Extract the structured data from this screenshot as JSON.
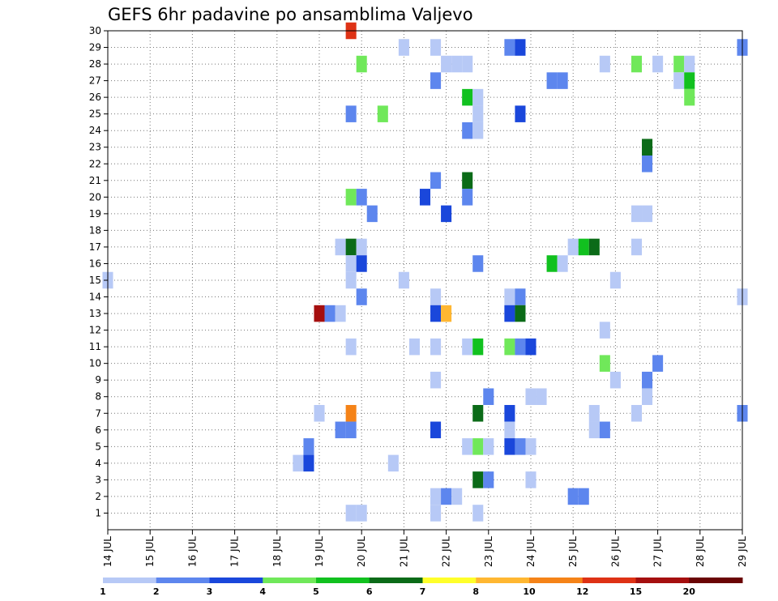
{
  "chart_data": {
    "type": "heatmap",
    "title": "GEFS 6hr padavine po ansamblima Valjevo",
    "x_axis": {
      "unit": "day of July",
      "range": [
        14,
        29
      ],
      "tick_labels": [
        "14 JUL",
        "15 JUL",
        "16 JUL",
        "17 JUL",
        "18 JUL",
        "19 JUL",
        "20 JUL",
        "21 JUL",
        "22 JUL",
        "23 JUL",
        "24 JUL",
        "25 JUL",
        "26 JUL",
        "27 JUL",
        "28 JUL",
        "29 JUL"
      ],
      "grid": true
    },
    "y_axis": {
      "unit": "ensemble member",
      "range": [
        0,
        30
      ],
      "tick_labels": [
        "1",
        "2",
        "3",
        "4",
        "5",
        "6",
        "7",
        "8",
        "9",
        "10",
        "11",
        "12",
        "13",
        "14",
        "15",
        "16",
        "17",
        "18",
        "19",
        "20",
        "21",
        "22",
        "23",
        "24",
        "25",
        "26",
        "27",
        "28",
        "29",
        "30"
      ],
      "grid": true
    },
    "colorbar": {
      "placement": "bottom",
      "labels": [
        "1",
        "2",
        "3",
        "4",
        "5",
        "6",
        "7",
        "8",
        "10",
        "12",
        "15",
        "20"
      ],
      "colors": [
        "#b7c9f6",
        "#5d86ee",
        "#1a47db",
        "#70e85a",
        "#11c11f",
        "#0b6b18",
        "#ffff2a",
        "#ffb732",
        "#f58318",
        "#de3215",
        "#a50f0f",
        "#6a0404"
      ]
    },
    "cells": [
      {
        "day": 19.75,
        "member": 30,
        "color": "#de3215"
      },
      {
        "day": 21.0,
        "member": 29,
        "color": "#b7c9f6"
      },
      {
        "day": 21.75,
        "member": 29,
        "color": "#b7c9f6"
      },
      {
        "day": 23.5,
        "member": 29,
        "color": "#5d86ee"
      },
      {
        "day": 23.75,
        "member": 29,
        "color": "#1a47db"
      },
      {
        "day": 29.0,
        "member": 29,
        "color": "#5d86ee"
      },
      {
        "day": 20.0,
        "member": 28,
        "color": "#70e85a"
      },
      {
        "day": 22.0,
        "member": 28,
        "color": "#b7c9f6"
      },
      {
        "day": 22.25,
        "member": 28,
        "color": "#b7c9f6"
      },
      {
        "day": 22.5,
        "member": 28,
        "color": "#b7c9f6"
      },
      {
        "day": 25.75,
        "member": 28,
        "color": "#b7c9f6"
      },
      {
        "day": 26.5,
        "member": 28,
        "color": "#70e85a"
      },
      {
        "day": 27.0,
        "member": 28,
        "color": "#b7c9f6"
      },
      {
        "day": 27.5,
        "member": 28,
        "color": "#70e85a"
      },
      {
        "day": 27.75,
        "member": 28,
        "color": "#b7c9f6"
      },
      {
        "day": 21.75,
        "member": 27,
        "color": "#5d86ee"
      },
      {
        "day": 24.5,
        "member": 27,
        "color": "#5d86ee"
      },
      {
        "day": 24.75,
        "member": 27,
        "color": "#5d86ee"
      },
      {
        "day": 27.5,
        "member": 27,
        "color": "#b7c9f6"
      },
      {
        "day": 27.75,
        "member": 27,
        "color": "#11c11f"
      },
      {
        "day": 22.5,
        "member": 26,
        "color": "#11c11f"
      },
      {
        "day": 22.75,
        "member": 26,
        "color": "#b7c9f6"
      },
      {
        "day": 27.75,
        "member": 26,
        "color": "#70e85a"
      },
      {
        "day": 19.75,
        "member": 25,
        "color": "#5d86ee"
      },
      {
        "day": 20.5,
        "member": 25,
        "color": "#70e85a"
      },
      {
        "day": 22.75,
        "member": 25,
        "color": "#b7c9f6"
      },
      {
        "day": 23.75,
        "member": 25,
        "color": "#1a47db"
      },
      {
        "day": 22.5,
        "member": 24,
        "color": "#5d86ee"
      },
      {
        "day": 22.75,
        "member": 24,
        "color": "#b7c9f6"
      },
      {
        "day": 26.75,
        "member": 23,
        "color": "#0b6b18"
      },
      {
        "day": 26.75,
        "member": 22,
        "color": "#5d86ee"
      },
      {
        "day": 21.75,
        "member": 21,
        "color": "#5d86ee"
      },
      {
        "day": 22.5,
        "member": 21,
        "color": "#0b6b18"
      },
      {
        "day": 19.75,
        "member": 20,
        "color": "#70e85a"
      },
      {
        "day": 20.0,
        "member": 20,
        "color": "#5d86ee"
      },
      {
        "day": 21.5,
        "member": 20,
        "color": "#1a47db"
      },
      {
        "day": 22.5,
        "member": 20,
        "color": "#5d86ee"
      },
      {
        "day": 20.25,
        "member": 19,
        "color": "#5d86ee"
      },
      {
        "day": 22.0,
        "member": 19,
        "color": "#1a47db"
      },
      {
        "day": 26.5,
        "member": 19,
        "color": "#b7c9f6"
      },
      {
        "day": 26.75,
        "member": 19,
        "color": "#b7c9f6"
      },
      {
        "day": 19.5,
        "member": 17,
        "color": "#b7c9f6"
      },
      {
        "day": 19.75,
        "member": 17,
        "color": "#0b6b18"
      },
      {
        "day": 20.0,
        "member": 17,
        "color": "#b7c9f6"
      },
      {
        "day": 25.0,
        "member": 17,
        "color": "#b7c9f6"
      },
      {
        "day": 25.25,
        "member": 17,
        "color": "#11c11f"
      },
      {
        "day": 25.5,
        "member": 17,
        "color": "#0b6b18"
      },
      {
        "day": 26.5,
        "member": 17,
        "color": "#b7c9f6"
      },
      {
        "day": 19.75,
        "member": 16,
        "color": "#b7c9f6"
      },
      {
        "day": 20.0,
        "member": 16,
        "color": "#1a47db"
      },
      {
        "day": 22.75,
        "member": 16,
        "color": "#5d86ee"
      },
      {
        "day": 24.5,
        "member": 16,
        "color": "#11c11f"
      },
      {
        "day": 24.75,
        "member": 16,
        "color": "#b7c9f6"
      },
      {
        "day": 14.0,
        "member": 15,
        "color": "#b7c9f6"
      },
      {
        "day": 19.75,
        "member": 15,
        "color": "#b7c9f6"
      },
      {
        "day": 21.0,
        "member": 15,
        "color": "#b7c9f6"
      },
      {
        "day": 26.0,
        "member": 15,
        "color": "#b7c9f6"
      },
      {
        "day": 20.0,
        "member": 14,
        "color": "#5d86ee"
      },
      {
        "day": 21.75,
        "member": 14,
        "color": "#b7c9f6"
      },
      {
        "day": 23.5,
        "member": 14,
        "color": "#b7c9f6"
      },
      {
        "day": 23.75,
        "member": 14,
        "color": "#5d86ee"
      },
      {
        "day": 29.0,
        "member": 14,
        "color": "#b7c9f6"
      },
      {
        "day": 19.0,
        "member": 13,
        "color": "#a50f0f"
      },
      {
        "day": 19.25,
        "member": 13,
        "color": "#5d86ee"
      },
      {
        "day": 19.5,
        "member": 13,
        "color": "#b7c9f6"
      },
      {
        "day": 21.75,
        "member": 13,
        "color": "#1a47db"
      },
      {
        "day": 22.0,
        "member": 13,
        "color": "#ffb732"
      },
      {
        "day": 23.5,
        "member": 13,
        "color": "#1a47db"
      },
      {
        "day": 23.75,
        "member": 13,
        "color": "#0b6b18"
      },
      {
        "day": 25.75,
        "member": 12,
        "color": "#b7c9f6"
      },
      {
        "day": 19.75,
        "member": 11,
        "color": "#b7c9f6"
      },
      {
        "day": 21.25,
        "member": 11,
        "color": "#b7c9f6"
      },
      {
        "day": 21.75,
        "member": 11,
        "color": "#b7c9f6"
      },
      {
        "day": 22.5,
        "member": 11,
        "color": "#b7c9f6"
      },
      {
        "day": 22.75,
        "member": 11,
        "color": "#11c11f"
      },
      {
        "day": 23.5,
        "member": 11,
        "color": "#70e85a"
      },
      {
        "day": 23.75,
        "member": 11,
        "color": "#5d86ee"
      },
      {
        "day": 24.0,
        "member": 11,
        "color": "#1a47db"
      },
      {
        "day": 25.75,
        "member": 10,
        "color": "#70e85a"
      },
      {
        "day": 27.0,
        "member": 10,
        "color": "#5d86ee"
      },
      {
        "day": 21.75,
        "member": 9,
        "color": "#b7c9f6"
      },
      {
        "day": 26.0,
        "member": 9,
        "color": "#b7c9f6"
      },
      {
        "day": 26.75,
        "member": 9,
        "color": "#5d86ee"
      },
      {
        "day": 23.0,
        "member": 8,
        "color": "#5d86ee"
      },
      {
        "day": 24.0,
        "member": 8,
        "color": "#b7c9f6"
      },
      {
        "day": 24.25,
        "member": 8,
        "color": "#b7c9f6"
      },
      {
        "day": 26.75,
        "member": 8,
        "color": "#b7c9f6"
      },
      {
        "day": 19.0,
        "member": 7,
        "color": "#b7c9f6"
      },
      {
        "day": 19.75,
        "member": 7,
        "color": "#f58318"
      },
      {
        "day": 22.75,
        "member": 7,
        "color": "#0b6b18"
      },
      {
        "day": 23.5,
        "member": 7,
        "color": "#1a47db"
      },
      {
        "day": 25.5,
        "member": 7,
        "color": "#b7c9f6"
      },
      {
        "day": 26.5,
        "member": 7,
        "color": "#b7c9f6"
      },
      {
        "day": 29.0,
        "member": 7,
        "color": "#5d86ee"
      },
      {
        "day": 19.5,
        "member": 6,
        "color": "#5d86ee"
      },
      {
        "day": 19.75,
        "member": 6,
        "color": "#5d86ee"
      },
      {
        "day": 21.75,
        "member": 6,
        "color": "#1a47db"
      },
      {
        "day": 23.5,
        "member": 6,
        "color": "#b7c9f6"
      },
      {
        "day": 25.5,
        "member": 6,
        "color": "#b7c9f6"
      },
      {
        "day": 25.75,
        "member": 6,
        "color": "#5d86ee"
      },
      {
        "day": 18.75,
        "member": 5,
        "color": "#5d86ee"
      },
      {
        "day": 22.5,
        "member": 5,
        "color": "#b7c9f6"
      },
      {
        "day": 22.75,
        "member": 5,
        "color": "#70e85a"
      },
      {
        "day": 23.0,
        "member": 5,
        "color": "#b7c9f6"
      },
      {
        "day": 23.5,
        "member": 5,
        "color": "#1a47db"
      },
      {
        "day": 23.75,
        "member": 5,
        "color": "#5d86ee"
      },
      {
        "day": 24.0,
        "member": 5,
        "color": "#b7c9f6"
      },
      {
        "day": 18.5,
        "member": 4,
        "color": "#b7c9f6"
      },
      {
        "day": 18.75,
        "member": 4,
        "color": "#1a47db"
      },
      {
        "day": 20.75,
        "member": 4,
        "color": "#b7c9f6"
      },
      {
        "day": 22.75,
        "member": 3,
        "color": "#0b6b18"
      },
      {
        "day": 23.0,
        "member": 3,
        "color": "#5d86ee"
      },
      {
        "day": 24.0,
        "member": 3,
        "color": "#b7c9f6"
      },
      {
        "day": 21.75,
        "member": 2,
        "color": "#b7c9f6"
      },
      {
        "day": 22.0,
        "member": 2,
        "color": "#5d86ee"
      },
      {
        "day": 22.25,
        "member": 2,
        "color": "#b7c9f6"
      },
      {
        "day": 25.0,
        "member": 2,
        "color": "#5d86ee"
      },
      {
        "day": 25.25,
        "member": 2,
        "color": "#5d86ee"
      },
      {
        "day": 21.75,
        "member": 1,
        "color": "#b7c9f6"
      },
      {
        "day": 19.75,
        "member": 1,
        "color": "#b7c9f6"
      },
      {
        "day": 20.0,
        "member": 1,
        "color": "#b7c9f6"
      },
      {
        "day": 22.75,
        "member": 1,
        "color": "#b7c9f6"
      }
    ]
  }
}
